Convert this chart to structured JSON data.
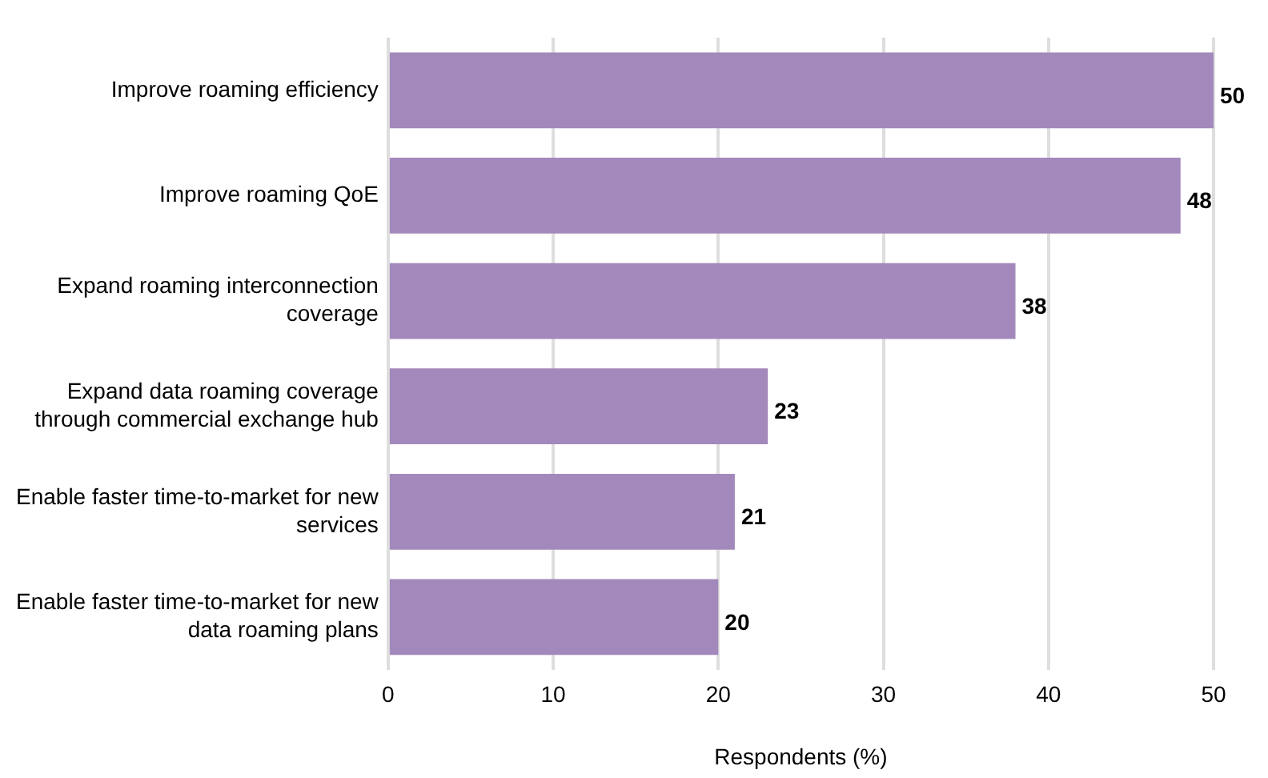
{
  "chart_data": {
    "type": "bar",
    "orientation": "horizontal",
    "xlabel": "Respondents (%)",
    "categories": [
      "Improve roaming efficiency",
      "Improve roaming QoE",
      "Expand roaming interconnection coverage",
      "Expand data roaming coverage through commercial exchange hub",
      "Enable faster time-to-market for new services",
      "Enable faster time-to-market for new data roaming plans"
    ],
    "values": [
      50,
      48,
      38,
      23,
      21,
      20
    ],
    "color": "#a389bb",
    "xlim": [
      0,
      50
    ],
    "xticks": [
      0,
      10,
      20,
      30,
      40,
      50
    ],
    "grid": "x",
    "legend": false,
    "data_labels": true
  }
}
